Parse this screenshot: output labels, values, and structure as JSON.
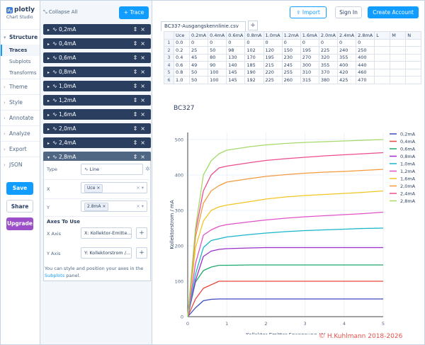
{
  "brand": {
    "name": "plotly",
    "sub": "Chart Studio"
  },
  "nav": {
    "structure": "Structure",
    "sub": [
      "Traces",
      "Subplots",
      "Transforms"
    ],
    "sections": [
      "Theme",
      "Style",
      "Annotate",
      "Analyze",
      "Export",
      "JSON"
    ],
    "save": "Save",
    "share": "Share",
    "upgrade": "Upgrade"
  },
  "panel": {
    "collapse": "Collapse All",
    "add_trace": "+ Trace",
    "traces": [
      "0,2mA",
      "0,4mA",
      "0,6mA",
      "0,8mA",
      "1,0mA",
      "1,2mA",
      "1,6mA",
      "2,0mA",
      "2,4mA",
      "2,8mA"
    ],
    "type_label": "Type",
    "type_value": "Line",
    "x_label": "X",
    "x_value": "Uce",
    "y_label": "Y",
    "y_value": "2.8mA",
    "axes_head": "Axes To Use",
    "xaxis_label": "X Axis",
    "xaxis_value": "X: Kollektor-Emitte...",
    "yaxis_label": "Y Axis",
    "yaxis_value": "Y: Kollektorstrom /...",
    "info_pre": "You can style and position your axes in the ",
    "info_link": "Subplots",
    "info_post": " panel."
  },
  "topbar": {
    "import": "Import",
    "signin": "Sign In",
    "create": "Create Account"
  },
  "file": {
    "name": "BC337-Ausgangskennlinie.csv",
    "add": "+"
  },
  "grid": {
    "headers": [
      "",
      "Uce",
      "0.2mA",
      "0.4mA",
      "0.6mA",
      "0.8mA",
      "1.0mA",
      "1.2mA",
      "1.6mA",
      "2.0mA",
      "2.4mA",
      "2.8mA",
      "L",
      "M",
      "N"
    ],
    "rows": [
      [
        "1",
        "0.0",
        "0",
        "0",
        "0",
        "0",
        "0",
        "0",
        "0",
        "0",
        "0",
        "0",
        "",
        "",
        ""
      ],
      [
        "2",
        "0.2",
        "25",
        "50",
        "98",
        "102",
        "120",
        "150",
        "195",
        "225",
        "240",
        "250",
        "",
        "",
        ""
      ],
      [
        "3",
        "0.4",
        "45",
        "80",
        "130",
        "170",
        "195",
        "230",
        "270",
        "320",
        "355",
        "400",
        "",
        "",
        ""
      ],
      [
        "4",
        "0.6",
        "49",
        "90",
        "140",
        "185",
        "215",
        "245",
        "300",
        "355",
        "400",
        "440",
        "",
        "",
        ""
      ],
      [
        "5",
        "0.8",
        "50",
        "100",
        "145",
        "190",
        "220",
        "255",
        "310",
        "370",
        "420",
        "460",
        "",
        "",
        ""
      ],
      [
        "6",
        "1.0",
        "50",
        "100",
        "145",
        "192",
        "225",
        "260",
        "315",
        "380",
        "425",
        "470",
        "",
        "",
        ""
      ]
    ]
  },
  "watermark": "© H.Kuhlmann 2018-2026",
  "chart_data": {
    "type": "line",
    "title": "BC327",
    "xlabel": "Kollektor-Emitter-Spannnung / V",
    "ylabel": "Kollektorstrom / mA",
    "xlim": [
      0,
      5
    ],
    "ylim": [
      0,
      520
    ],
    "xticks": [
      0,
      1,
      2,
      3,
      4,
      5
    ],
    "yticks": [
      0,
      100,
      200,
      300,
      400,
      500
    ],
    "legend": "top-right",
    "x": [
      0,
      0.2,
      0.4,
      0.6,
      0.8,
      1,
      1.6,
      2,
      2.5,
      3,
      3.5,
      4,
      4.5,
      5
    ],
    "series": [
      {
        "name": "0,2mA",
        "color": "#3b4cc0",
        "values": [
          0,
          25,
          45,
          49,
          50,
          50,
          50,
          50,
          50,
          50,
          50,
          50,
          50,
          50
        ]
      },
      {
        "name": "0,4mA",
        "color": "#e8483f",
        "values": [
          0,
          50,
          80,
          90,
          100,
          100,
          100,
          100,
          100,
          100,
          100,
          100,
          100,
          100
        ]
      },
      {
        "name": "0,6mA",
        "color": "#1fa86b",
        "values": [
          0,
          98,
          130,
          140,
          145,
          145,
          146,
          146,
          146,
          146,
          146,
          146,
          146,
          146
        ]
      },
      {
        "name": "0,8mA",
        "color": "#9b2fc9",
        "values": [
          0,
          102,
          170,
          185,
          190,
          192,
          194,
          195,
          195,
          195,
          195,
          195,
          195,
          195
        ]
      },
      {
        "name": "1,0mA",
        "color": "#19b5c9",
        "values": [
          0,
          120,
          195,
          215,
          220,
          225,
          232,
          236,
          240,
          243,
          245,
          247,
          249,
          250
        ]
      },
      {
        "name": "1,2mA",
        "color": "#e052c7",
        "values": [
          0,
          150,
          230,
          245,
          255,
          260,
          268,
          273,
          278,
          282,
          285,
          288,
          291,
          295
        ]
      },
      {
        "name": "1,6mA",
        "color": "#f2c622",
        "values": [
          0,
          195,
          270,
          300,
          310,
          315,
          325,
          332,
          338,
          342,
          345,
          348,
          351,
          355
        ]
      },
      {
        "name": "2,0mA",
        "color": "#f39a3f",
        "values": [
          0,
          225,
          320,
          355,
          370,
          380,
          390,
          396,
          401,
          405,
          408,
          410,
          413,
          416
        ]
      },
      {
        "name": "2,4mA",
        "color": "#ec4d8e",
        "values": [
          0,
          240,
          355,
          400,
          420,
          425,
          435,
          441,
          446,
          450,
          454,
          457,
          460,
          463
        ]
      },
      {
        "name": "2,8mA",
        "color": "#a6d96a",
        "values": [
          0,
          250,
          400,
          440,
          460,
          470,
          480,
          485,
          489,
          492,
          494,
          496,
          498,
          500
        ]
      }
    ]
  }
}
